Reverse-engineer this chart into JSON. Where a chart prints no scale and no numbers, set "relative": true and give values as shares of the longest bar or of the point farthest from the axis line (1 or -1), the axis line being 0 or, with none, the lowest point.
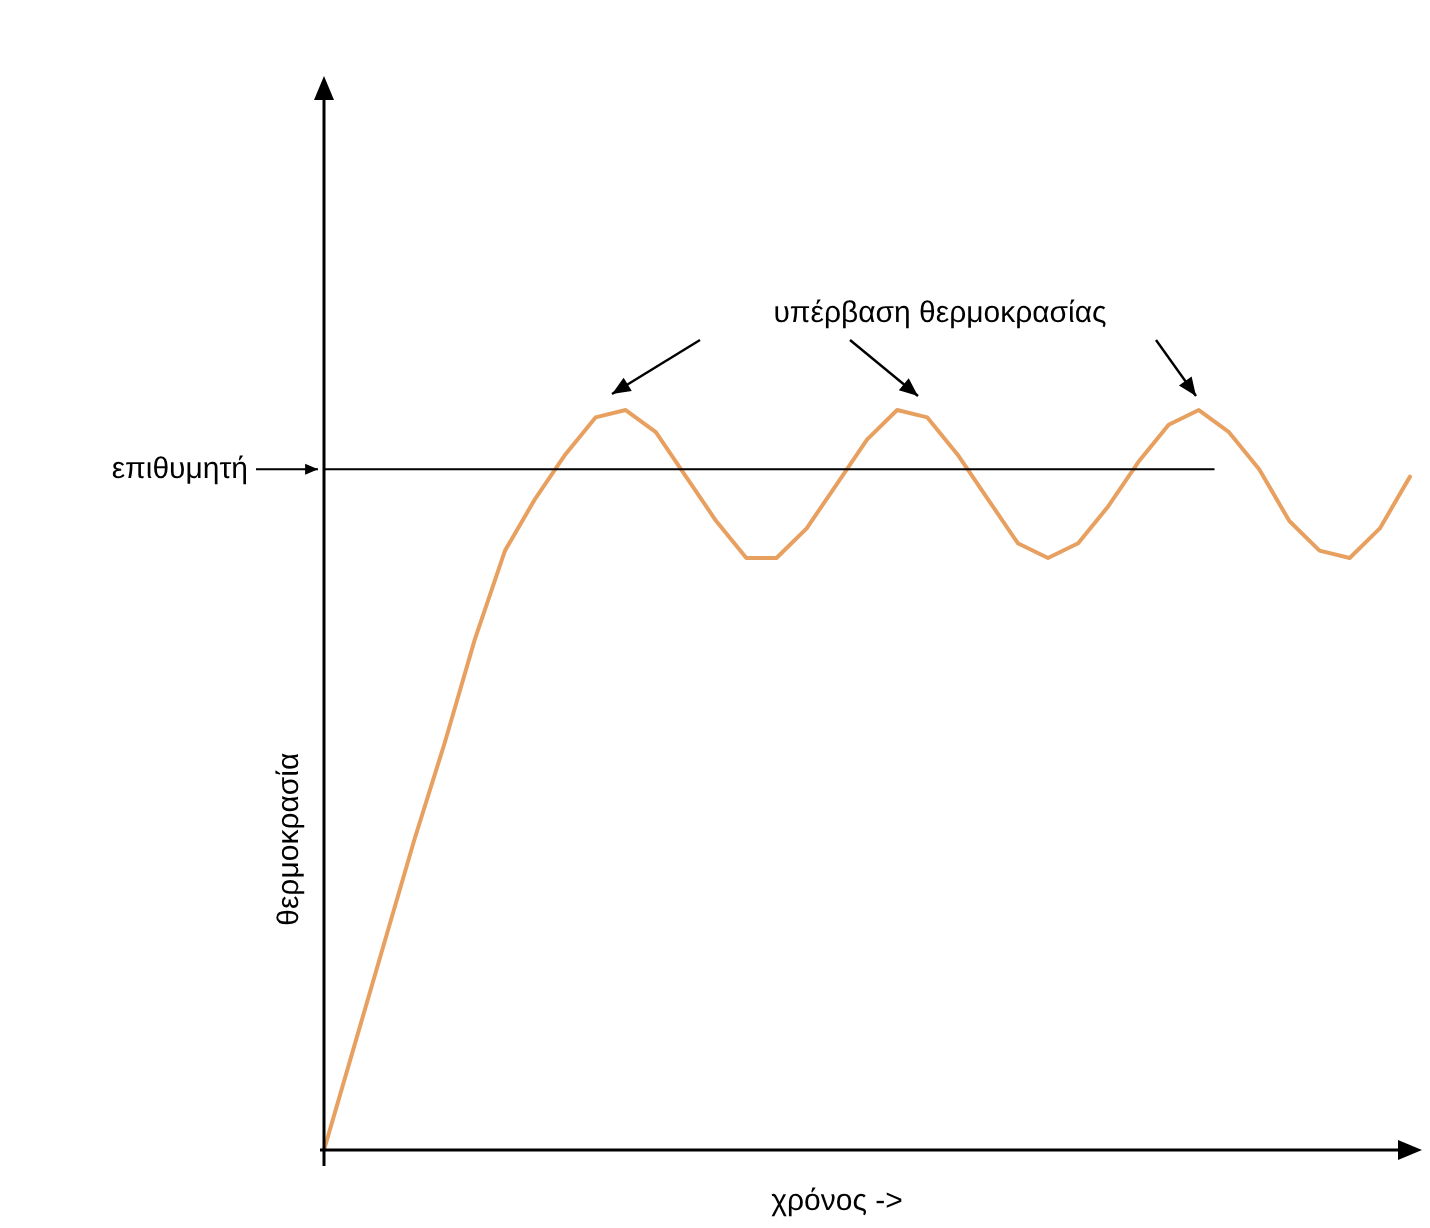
{
  "chart_data": {
    "type": "line",
    "xlabel": "χρόνος ->",
    "ylabel": "θερμοκρασία",
    "annotations": [
      "υπέρβαση θερμοκρασίας"
    ],
    "categories": [
      null,
      null,
      null,
      null,
      null,
      null,
      null,
      null,
      null,
      null,
      null,
      null,
      null,
      null,
      null,
      null,
      null,
      null,
      null,
      null,
      null,
      null,
      null,
      null,
      null,
      null,
      null,
      null,
      null,
      null,
      null,
      null,
      null,
      null,
      null,
      null,
      null
    ],
    "series": [
      {
        "color": "#e8a060",
        "values": [
          0,
          0.14,
          0.28,
          0.42,
          0.55,
          0.69,
          0.81,
          0.88,
          0.94,
          0.99,
          1,
          0.97,
          0.91,
          0.85,
          0.8,
          0.8,
          0.84,
          0.9,
          0.96,
          1,
          0.99,
          0.94,
          0.88,
          0.82,
          0.8,
          0.82,
          0.87,
          0.93,
          0.98,
          1,
          0.97,
          0.92,
          0.85,
          0.81,
          0.8,
          0.84,
          0.91
        ]
      }
    ],
    "relative": true,
    "ref_lines": [
      {
        "axis": "y",
        "value": 0.92,
        "label": "επιθυμητή",
        "color": "#000000"
      }
    ],
    "legend": false,
    "marker": "none",
    "line_style": "solid"
  }
}
